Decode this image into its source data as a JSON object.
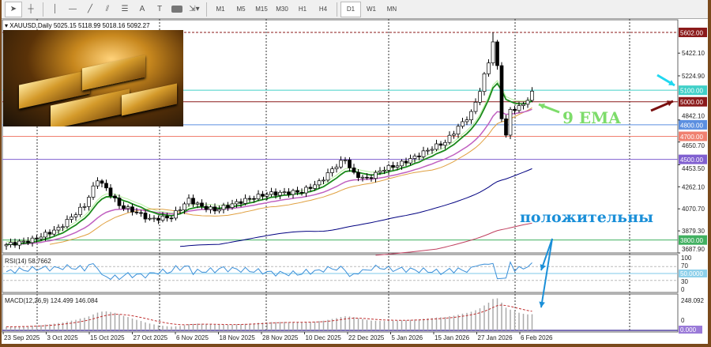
{
  "toolbar": {
    "tools": [
      "cursor-icon",
      "crosshair-icon",
      "vertical-line-icon",
      "horizontal-line-icon",
      "trendline-icon",
      "channel-icon",
      "fibonacci-icon",
      "text-icon",
      "text-label-icon",
      "rectangle-icon",
      "arrows-icon"
    ],
    "text_tool": "A",
    "text_label_tool": "T",
    "timeframes": [
      "M1",
      "M5",
      "M15",
      "M30",
      "H1",
      "H4",
      "D1",
      "W1",
      "MN"
    ],
    "active_timeframe": "D1"
  },
  "chart": {
    "symbol_info": "XAUUSD,Daily  5025.15 5118.99 5018.16 5092.27",
    "price_axis": [
      "5422.10",
      "5224.90",
      "4842.10",
      "4650.70",
      "4453.50",
      "4262.10",
      "4070.70",
      "3879.30",
      "3687.90"
    ],
    "levels": [
      {
        "label": "5602.00",
        "value": 5602,
        "color": "#8b1a1a",
        "dashed": true
      },
      {
        "label": "5100.00",
        "value": 5100,
        "color": "#40d0c8"
      },
      {
        "label": "5000.00",
        "value": 5000,
        "color": "#8b1a1a"
      },
      {
        "label": "4800.00",
        "value": 4800,
        "color": "#5b8fe0"
      },
      {
        "label": "4700.00",
        "value": 4700,
        "color": "#f08070"
      },
      {
        "label": "4500.00",
        "value": 4500,
        "color": "#8060d0"
      },
      {
        "label": "3800.00",
        "value": 3800,
        "color": "#40b060"
      }
    ],
    "price_min": 3687.9,
    "price_max": 5602,
    "price_keyframes": [
      [
        0,
        3760
      ],
      [
        6,
        3800
      ],
      [
        12,
        3900
      ],
      [
        18,
        4100
      ],
      [
        21,
        4330
      ],
      [
        24,
        4200
      ],
      [
        26,
        4100
      ],
      [
        30,
        4040
      ],
      [
        33,
        3980
      ],
      [
        38,
        4000
      ],
      [
        42,
        4150
      ],
      [
        45,
        4090
      ],
      [
        48,
        4060
      ],
      [
        52,
        4110
      ],
      [
        56,
        4160
      ],
      [
        60,
        4200
      ],
      [
        64,
        4210
      ],
      [
        68,
        4220
      ],
      [
        72,
        4300
      ],
      [
        76,
        4450
      ],
      [
        78,
        4500
      ],
      [
        80,
        4370
      ],
      [
        83,
        4330
      ],
      [
        87,
        4420
      ],
      [
        90,
        4450
      ],
      [
        94,
        4520
      ],
      [
        98,
        4600
      ],
      [
        101,
        4650
      ],
      [
        104,
        4780
      ],
      [
        107,
        4900
      ],
      [
        109,
        5100
      ],
      [
        111,
        5350
      ],
      [
        112,
        5520
      ],
      [
        113,
        5300
      ],
      [
        114,
        4870
      ],
      [
        115,
        4700
      ],
      [
        116,
        4930
      ],
      [
        118,
        4950
      ],
      [
        120,
        5020
      ],
      [
        121,
        5092
      ]
    ]
  },
  "rsi": {
    "label": "RSI(14) 58.7662",
    "axis": [
      "100",
      "70",
      "30",
      "0"
    ],
    "level_label": "50.0000"
  },
  "macd": {
    "label": "MACD(12,26,9) 124.499 146.084",
    "axis_top": "248.092",
    "axis_zero": "0",
    "zero_label": "0.000"
  },
  "dates": [
    "23 Sep 2025",
    "3 Oct 2025",
    "15 Oct 2025",
    "27 Oct 2025",
    "6 Nov 2025",
    "18 Nov 2025",
    "28 Nov 2025",
    "10 Dec 2025",
    "22 Dec 2025",
    "5 Jan 2026",
    "15 Jan 2026",
    "27 Jan 2026",
    "6 Feb 2026"
  ],
  "annotations": {
    "ema": "9 EMA",
    "positive": "положительны"
  },
  "colors": {
    "frame": "#7a4a1c",
    "ema_label": "#7ddc6a",
    "positive": "#1a8fd8"
  }
}
